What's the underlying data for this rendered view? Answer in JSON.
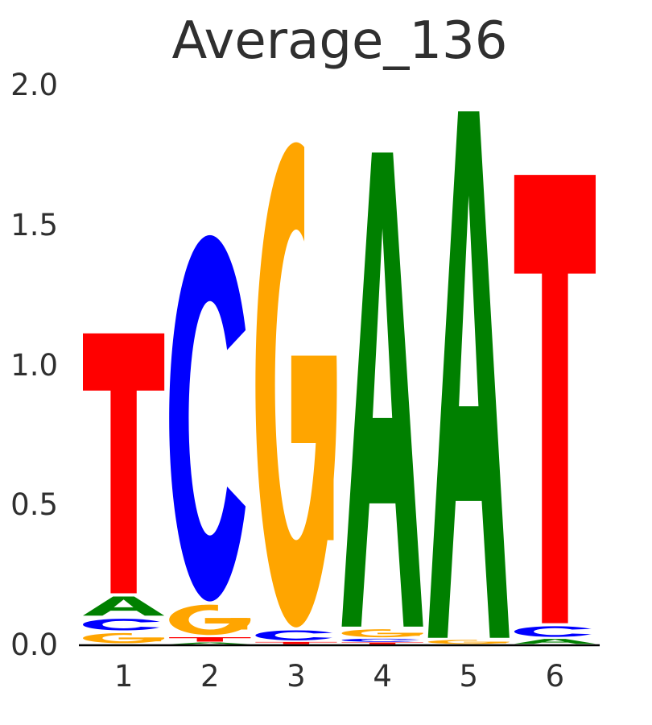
{
  "title": "Average_136",
  "axis": {
    "yticks": [
      "2.0",
      "1.5",
      "1.0",
      "0.5",
      "0.0"
    ],
    "xticks": [
      "1",
      "2",
      "3",
      "4",
      "5",
      "6"
    ]
  },
  "chart_data": {
    "type": "sequence_logo",
    "title": "Average_136",
    "xlabel": "",
    "ylabel": "",
    "ylim": [
      0,
      2.0
    ],
    "ytick_values": [
      0.0,
      0.5,
      1.0,
      1.5,
      2.0
    ],
    "positions": [
      1,
      2,
      3,
      4,
      5,
      6
    ],
    "consensus": "TCGAAT",
    "legend": "none",
    "grid": false,
    "letter_colors": {
      "A": "#008000",
      "C": "#0000ff",
      "G": "#ffa500",
      "T": "#ff0000"
    },
    "stacks": [
      [
        [
          "G",
          0.045
        ],
        [
          "C",
          0.052
        ],
        [
          "A",
          0.08
        ],
        [
          "T",
          0.94
        ]
      ],
      [
        [
          "A",
          0.008
        ],
        [
          "T",
          0.02
        ],
        [
          "G",
          0.12
        ],
        [
          "C",
          1.32
        ]
      ],
      [
        [
          "T",
          0.01
        ],
        [
          "C",
          0.045
        ],
        [
          "G",
          1.745
        ]
      ],
      [
        [
          "T",
          0.008
        ],
        [
          "C",
          0.014
        ],
        [
          "G",
          0.036
        ],
        [
          "A",
          1.705
        ]
      ],
      [
        [
          "G",
          0.018
        ],
        [
          "A",
          1.892
        ]
      ],
      [
        [
          "A",
          0.022
        ],
        [
          "C",
          0.048
        ],
        [
          "T",
          1.613
        ]
      ]
    ],
    "stack_totals": [
      1.117,
      1.468,
      1.8,
      1.763,
      1.91,
      1.683
    ]
  }
}
